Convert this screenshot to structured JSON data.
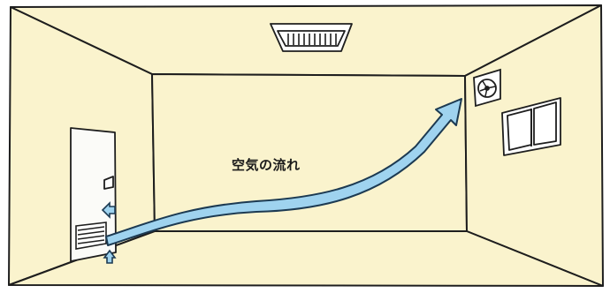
{
  "diagram": {
    "flow_label": "空気の流れ"
  },
  "colors": {
    "wall": "#faf3cd",
    "outline": "#1e1e1e",
    "door": "#fbfbf8",
    "airflow": "#9fd3ef",
    "airflow_outline": "#1c3a52"
  },
  "icons": [
    "ceiling-vent-icon",
    "exhaust-fan-icon",
    "window-icon",
    "door-icon",
    "door-vent-grille-icon",
    "airflow-arrow-icon"
  ]
}
